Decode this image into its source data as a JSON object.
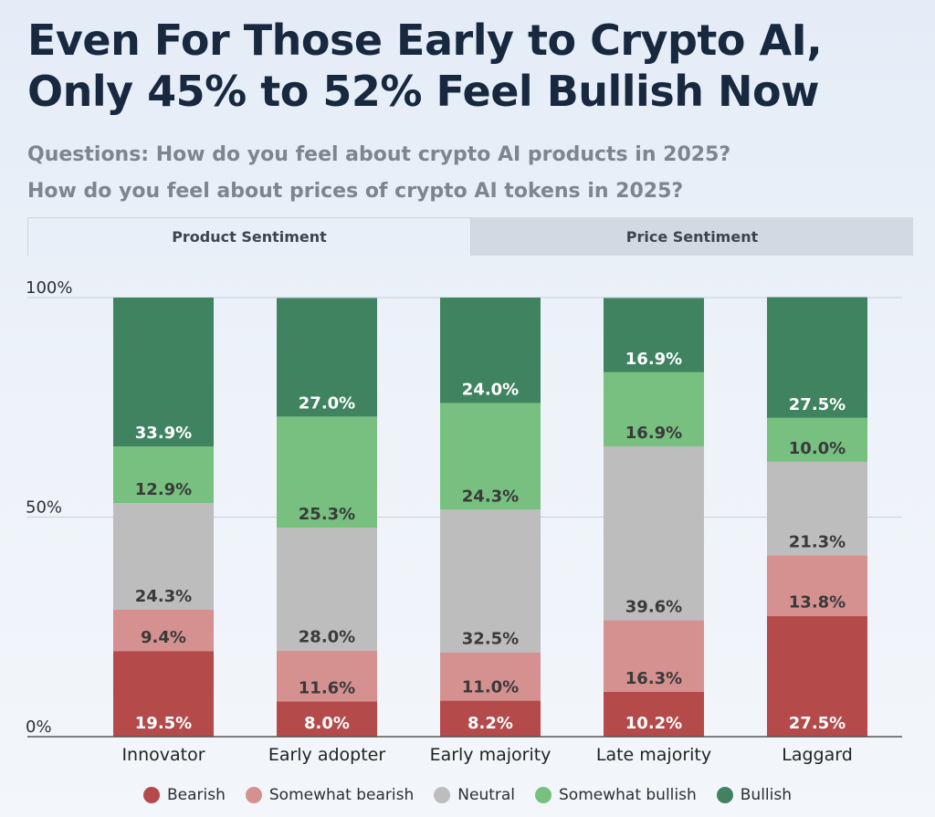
{
  "title_lines": [
    "Even For Those Early to Crypto AI,",
    "Only 45% to 52% Feel Bullish Now"
  ],
  "subtitle_lines": [
    "Questions: How do you feel about crypto AI products in 2025?",
    "How do you feel about prices of crypto AI tokens in 2025?"
  ],
  "tabs": [
    {
      "label": "Product Sentiment",
      "active": true
    },
    {
      "label": "Price Sentiment",
      "active": false
    }
  ],
  "chart_data": {
    "type": "bar",
    "stacked": true,
    "categories": [
      "Innovator",
      "Early adopter",
      "Early majority",
      "Late majority",
      "Laggard"
    ],
    "series": [
      {
        "name": "Bearish",
        "color": "#b54a4b",
        "values": [
          19.5,
          8.0,
          8.2,
          10.2,
          27.5
        ]
      },
      {
        "name": "Somewhat bearish",
        "color": "#d59090",
        "values": [
          9.4,
          11.6,
          11.0,
          16.3,
          13.8
        ]
      },
      {
        "name": "Neutral",
        "color": "#bdbdbd",
        "values": [
          24.3,
          28.0,
          32.5,
          39.6,
          21.3
        ]
      },
      {
        "name": "Somewhat bullish",
        "color": "#77c07f",
        "values": [
          12.9,
          25.3,
          24.3,
          16.9,
          10.0
        ]
      },
      {
        "name": "Bullish",
        "color": "#3f8360",
        "values": [
          33.9,
          27.0,
          24.0,
          16.9,
          27.5
        ]
      }
    ],
    "y_ticks": [
      {
        "value": 0,
        "label": "0%"
      },
      {
        "value": 50,
        "label": "50%"
      },
      {
        "value": 100,
        "label": "100%"
      }
    ],
    "ylim": [
      0,
      100
    ],
    "legend_position": "bottom"
  }
}
